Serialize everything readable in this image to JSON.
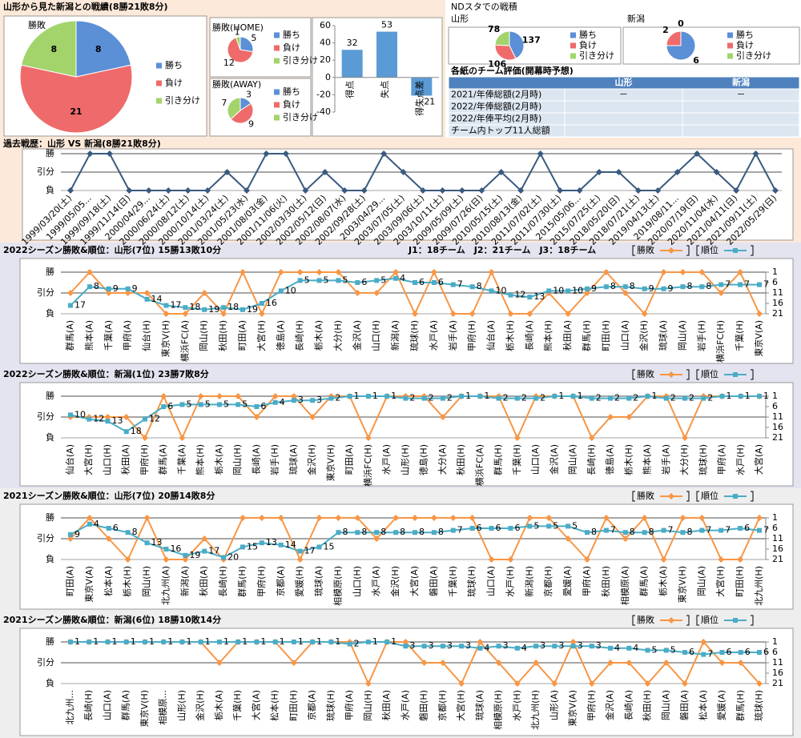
{
  "panel_title": "山形から見た新潟との戦績(8勝21敗8分)",
  "nd_title": "NDスタでの戦積",
  "table": {
    "title": "各紙のチーム評価(開幕時予想)",
    "columns": [
      "山形",
      "新潟"
    ],
    "rows": [
      {
        "label": "2021/年俸総額(2月時)",
        "cells": [
          "－",
          "－"
        ]
      },
      {
        "label": "2022/年俸総額(2月時)"
      },
      {
        "label": "2022/年俸平均(2月時)"
      },
      {
        "label": "チーム内トップ11人総額"
      }
    ]
  },
  "chart_data": [
    {
      "type": "pie",
      "title": "勝敗",
      "categories": [
        "勝ち",
        "負け",
        "引き分け"
      ],
      "values": [
        8,
        21,
        8
      ],
      "colors": [
        "#5b8fd6",
        "#ef6b6b",
        "#a3d46c"
      ]
    },
    {
      "type": "pie",
      "title": "勝敗(HOME)",
      "categories": [
        "勝ち",
        "負け",
        "引き分け"
      ],
      "values": [
        5,
        12,
        1
      ],
      "colors": [
        "#5b8fd6",
        "#ef6b6b",
        "#a3d46c"
      ]
    },
    {
      "type": "pie",
      "title": "勝敗(AWAY)",
      "categories": [
        "勝ち",
        "負け",
        "引き分け"
      ],
      "values": [
        3,
        9,
        7
      ],
      "colors": [
        "#5b8fd6",
        "#ef6b6b",
        "#a3d46c"
      ]
    },
    {
      "type": "bar",
      "categories": [
        "得点",
        "失点",
        "得失点差"
      ],
      "values": [
        32,
        53,
        -21
      ],
      "color": "#5b9bd5",
      "ylim": [
        -40,
        60
      ],
      "yticks": [
        -40,
        -20,
        0,
        20,
        40,
        60
      ]
    },
    {
      "type": "pie",
      "title": "山形",
      "categories": [
        "勝ち",
        "負け",
        "引き分け"
      ],
      "values": [
        137,
        106,
        78
      ],
      "colors": [
        "#5b8fd6",
        "#ef6b6b",
        "#a3d46c"
      ]
    },
    {
      "type": "pie",
      "title": "新潟",
      "categories": [
        "勝ち",
        "負け",
        "引き分け"
      ],
      "values": [
        6,
        2,
        0
      ],
      "colors": [
        "#5b8fd6",
        "#ef6b6b",
        "#a3d46c"
      ]
    },
    {
      "type": "line",
      "title": "過去戦歴：山形 VS 新潟(8勝21敗8分)",
      "categories": [
        "1999/03/20(土)",
        "1999/05/05...",
        "1999/09/18(土)",
        "1999/11/14(日)",
        "2000/04/29...",
        "2000/06/24(土)",
        "2000/08/12(土)",
        "2000/10/14(土)",
        "2001/03/24(土)",
        "2001/05/23(水)",
        "2001/08/03(金)",
        "2001/11/06(火)",
        "2002/03/30(土)",
        "2002/05/12(日)",
        "2002/08/07(水)",
        "2002/09/28(土)",
        "2003/04/29...",
        "2003/07/05(土)",
        "2003/09/06(土)",
        "2003/10/11(土)",
        "2009/05/09(土)",
        "2009/07/26(日)",
        "2010/05/15(土)",
        "2010/08/13(金)",
        "2011/07/02(土)",
        "2011/07/30(土)",
        "2015/05/06...",
        "2015/07/25(土)",
        "2018/05/20(日)",
        "2018/07/21(土)",
        "2019/04/13(土)",
        "2019/08/11...",
        "2020/07/19(日)",
        "2020/11/04(水)",
        "2021/04/11(日)",
        "2021/09/11(土)",
        "2022/05/29(日)"
      ],
      "series": [
        {
          "color": "#3a5a7f",
          "marker": "diamond",
          "values": [
            0,
            2,
            2,
            0,
            0,
            0,
            0,
            0,
            1,
            0,
            2,
            2,
            0,
            1,
            0,
            0,
            2,
            1,
            0,
            0,
            0,
            0,
            1,
            0,
            2,
            0,
            0,
            1,
            1,
            0,
            0,
            1,
            2,
            1,
            0,
            2,
            0
          ]
        }
      ],
      "ylim": [
        0,
        2
      ],
      "yticks": [
        {
          "value": 0,
          "label": "負"
        },
        {
          "value": 1,
          "label": "引分"
        },
        {
          "value": 2,
          "label": "勝"
        }
      ]
    },
    {
      "type": "line",
      "title": "2022シーズン勝敗&順位：山形(7位) 15勝13敗10分",
      "subtitle": "J1：18チーム　J2：21チーム　J3：18チーム",
      "categories": [
        "群馬(A)",
        "熊本(A)",
        "千葉(A)",
        "甲府(A)",
        "仙台(H)",
        "東京V(H)",
        "横浜FC(A)",
        "岡山(H)",
        "秋田(H)",
        "町田(A)",
        "大宮(H)",
        "徳島(A)",
        "長崎(H)",
        "栃木(A)",
        "大分(H)",
        "金沢(A)",
        "山口(H)",
        "新潟(A)",
        "琉球(H)",
        "水戸(A)",
        "岩手(A)",
        "甲府(H)",
        "仙台(A)",
        "栃木(H)",
        "長崎(A)",
        "熊本(H)",
        "秋田(A)",
        "群馬(H)",
        "町田(H)",
        "山口(A)",
        "金沢(H)",
        "琉球(A)",
        "岡山(A)",
        "岩手(H)",
        "横浜FC(H)",
        "千葉(H)",
        "東京V(A)"
      ],
      "series": [
        {
          "name": "勝敗",
          "color": "#f79646",
          "marker": "diamond",
          "values": [
            1,
            2,
            1,
            1,
            1,
            0,
            0,
            1,
            0,
            2,
            0,
            2,
            2,
            2,
            2,
            1,
            1,
            2,
            0,
            2,
            0,
            0,
            2,
            0,
            0,
            1,
            0,
            1,
            2,
            1,
            0,
            2,
            2,
            2,
            1,
            2,
            0
          ]
        },
        {
          "name": "順位",
          "color": "#4bacc6",
          "marker": "square",
          "axis": "y2",
          "values": [
            17,
            8,
            9,
            9,
            14,
            17,
            18,
            19,
            18,
            19,
            16,
            10,
            5,
            5,
            5,
            6,
            5,
            4,
            6,
            6,
            7,
            8,
            10,
            12,
            13,
            10,
            10,
            9,
            8,
            8,
            9,
            9,
            8,
            8,
            7,
            7,
            7
          ]
        }
      ],
      "ylim": [
        0,
        2
      ],
      "yticks": [
        {
          "value": 0,
          "label": "負"
        },
        {
          "value": 1,
          "label": "引分"
        },
        {
          "value": 2,
          "label": "勝"
        }
      ],
      "y2lim": [
        21,
        1
      ],
      "y2ticks": [
        1,
        6,
        11,
        16,
        21
      ]
    },
    {
      "type": "line",
      "title": "2022シーズン勝敗&順位：新潟(1位) 23勝7敗8分",
      "categories": [
        "仙台(A)",
        "大宮(H)",
        "山口(H)",
        "秋田(A)",
        "甲府(H)",
        "群馬(A)",
        "千葉(A)",
        "熊本(H)",
        "栃木(A)",
        "岡山(H)",
        "長崎(A)",
        "岩手(H)",
        "琉球(A)",
        "金沢(H)",
        "東京V(H)",
        "町田(A)",
        "横浜FC(H)",
        "水戸(A)",
        "山形(H)",
        "徳島(H)",
        "大分(A)",
        "秋田(H)",
        "横浜FC(A)",
        "群馬(H)",
        "千葉(H)",
        "山口(A)",
        "金沢(A)",
        "岡山(A)",
        "長崎(H)",
        "徳島(A)",
        "栃木(H)",
        "熊本(A)",
        "岩手(A)",
        "大分(H)",
        "琉球(H)",
        "甲府(A)",
        "水戸(H)",
        "大宮(A)"
      ],
      "series": [
        {
          "name": "勝敗",
          "color": "#f79646",
          "marker": "diamond",
          "values": [
            1,
            1,
            1,
            1,
            0,
            2,
            0,
            2,
            2,
            2,
            1,
            2,
            2,
            1,
            2,
            2,
            0,
            2,
            2,
            2,
            1,
            2,
            2,
            2,
            0,
            2,
            2,
            2,
            0,
            1,
            1,
            2,
            2,
            0,
            2,
            2,
            2,
            2
          ]
        },
        {
          "name": "順位",
          "color": "#4bacc6",
          "marker": "square",
          "axis": "y2",
          "values": [
            10,
            12,
            13,
            18,
            12,
            6,
            5,
            5,
            5,
            5,
            6,
            4,
            3,
            3,
            2,
            1,
            1,
            1,
            2,
            2,
            2,
            1,
            1,
            2,
            2,
            2,
            1,
            1,
            2,
            2,
            2,
            1,
            2,
            2,
            2,
            1,
            1,
            1
          ]
        }
      ],
      "ylim": [
        0,
        2
      ],
      "yticks": [
        {
          "value": 0,
          "label": "負"
        },
        {
          "value": 1,
          "label": "引分"
        },
        {
          "value": 2,
          "label": "勝"
        }
      ],
      "y2lim": [
        21,
        1
      ],
      "y2ticks": [
        1,
        6,
        11,
        16,
        21
      ]
    },
    {
      "type": "line",
      "title": "2021シーズン勝敗&順位：山形(7位) 20勝14敗8分",
      "categories": [
        "町田(A)",
        "東京V(A)",
        "松本(A)",
        "栃木(H)",
        "岡山(H)",
        "北九州(A)",
        "新潟(A)",
        "秋田(A)",
        "長崎(H)",
        "群馬(H)",
        "甲府(H)",
        "京都(A)",
        "愛媛(H)",
        "琉球(A)",
        "相模原(H)",
        "山口(H)",
        "水戸(A)",
        "金沢(H)",
        "大宮(A)",
        "磐田(A)",
        "千葉(H)",
        "琉球(H)",
        "山口(A)",
        "水戸(H)",
        "新潟(H)",
        "京都(H)",
        "愛媛(A)",
        "甲府(A)",
        "秋田(H)",
        "相模原(A)",
        "群馬(A)",
        "栃木(A)",
        "東京V(H)",
        "岡山(A)",
        "大宮(H)",
        "町田(H)",
        "北九州(H)"
      ],
      "series": [
        {
          "name": "勝敗",
          "color": "#f79646",
          "marker": "diamond",
          "values": [
            1,
            2,
            1,
            0,
            2,
            0,
            0,
            1,
            0,
            2,
            2,
            2,
            0,
            2,
            2,
            2,
            1,
            2,
            2,
            2,
            2,
            2,
            0,
            0,
            2,
            2,
            1,
            0,
            2,
            1,
            2,
            0,
            2,
            2,
            0,
            0,
            2
          ]
        },
        {
          "name": "順位",
          "color": "#4bacc6",
          "marker": "square",
          "axis": "y2",
          "values": [
            9,
            4,
            6,
            8,
            13,
            16,
            19,
            17,
            20,
            15,
            13,
            14,
            17,
            15,
            8,
            8,
            8,
            8,
            8,
            8,
            7,
            6,
            6,
            6,
            5,
            5,
            5,
            8,
            7,
            8,
            8,
            7,
            8,
            7,
            7,
            6,
            7
          ]
        }
      ],
      "ylim": [
        0,
        2
      ],
      "yticks": [
        {
          "value": 0,
          "label": "負"
        },
        {
          "value": 1,
          "label": "引分"
        },
        {
          "value": 2,
          "label": "勝"
        }
      ],
      "y2lim": [
        21,
        1
      ],
      "y2ticks": [
        1,
        6,
        11,
        16,
        21
      ]
    },
    {
      "type": "line",
      "title": "2021シーズン勝敗&順位：新潟(6位) 18勝10敗14分",
      "categories": [
        "北九州...",
        "長崎(H)",
        "山口(A)",
        "群馬(A)",
        "東京V(H)",
        "相模原...",
        "山形(H)",
        "金沢(H)",
        "栃木(A)",
        "千葉(H)",
        "大宮(A)",
        "松本(H)",
        "町田(H)",
        "京都(A)",
        "琉球(H)",
        "甲府(A)",
        "岡山(H)",
        "秋田(A)",
        "水戸(A)",
        "磐田(H)",
        "京都(H)",
        "大宮(H)",
        "琉球(A)",
        "相模原(H)",
        "水戸(H)",
        "北九州(H)",
        "山形(A)",
        "東京V(A)",
        "甲府(H)",
        "金沢(A)",
        "長崎(A)",
        "秋田(H)",
        "岡山(A)",
        "磐田(A)",
        "松本(A)",
        "愛媛(A)",
        "群馬(H)",
        "琉球(H)"
      ],
      "series": [
        {
          "name": "勝敗",
          "color": "#f79646",
          "marker": "diamond",
          "values": [
            2,
            2,
            2,
            2,
            2,
            2,
            2,
            2,
            1,
            2,
            2,
            2,
            1,
            2,
            2,
            2,
            0,
            2,
            2,
            1,
            1,
            0,
            2,
            1,
            0,
            1,
            0,
            2,
            0,
            1,
            1,
            0,
            1,
            0,
            2,
            1,
            1,
            0
          ]
        },
        {
          "name": "順位",
          "color": "#4bacc6",
          "marker": "square",
          "axis": "y2",
          "values": [
            1,
            1,
            1,
            1,
            1,
            1,
            1,
            1,
            1,
            1,
            1,
            1,
            1,
            1,
            1,
            2,
            1,
            1,
            3,
            3,
            3,
            3,
            4,
            3,
            4,
            3,
            3,
            3,
            3,
            4,
            4,
            5,
            5,
            6,
            7,
            6,
            6,
            6
          ]
        }
      ],
      "ylim": [
        0,
        2
      ],
      "yticks": [
        {
          "value": 0,
          "label": "負"
        },
        {
          "value": 1,
          "label": "引分"
        },
        {
          "value": 2,
          "label": "勝"
        }
      ],
      "y2lim": [
        21,
        1
      ],
      "y2ticks": [
        1,
        6,
        11,
        16,
        21
      ]
    }
  ]
}
